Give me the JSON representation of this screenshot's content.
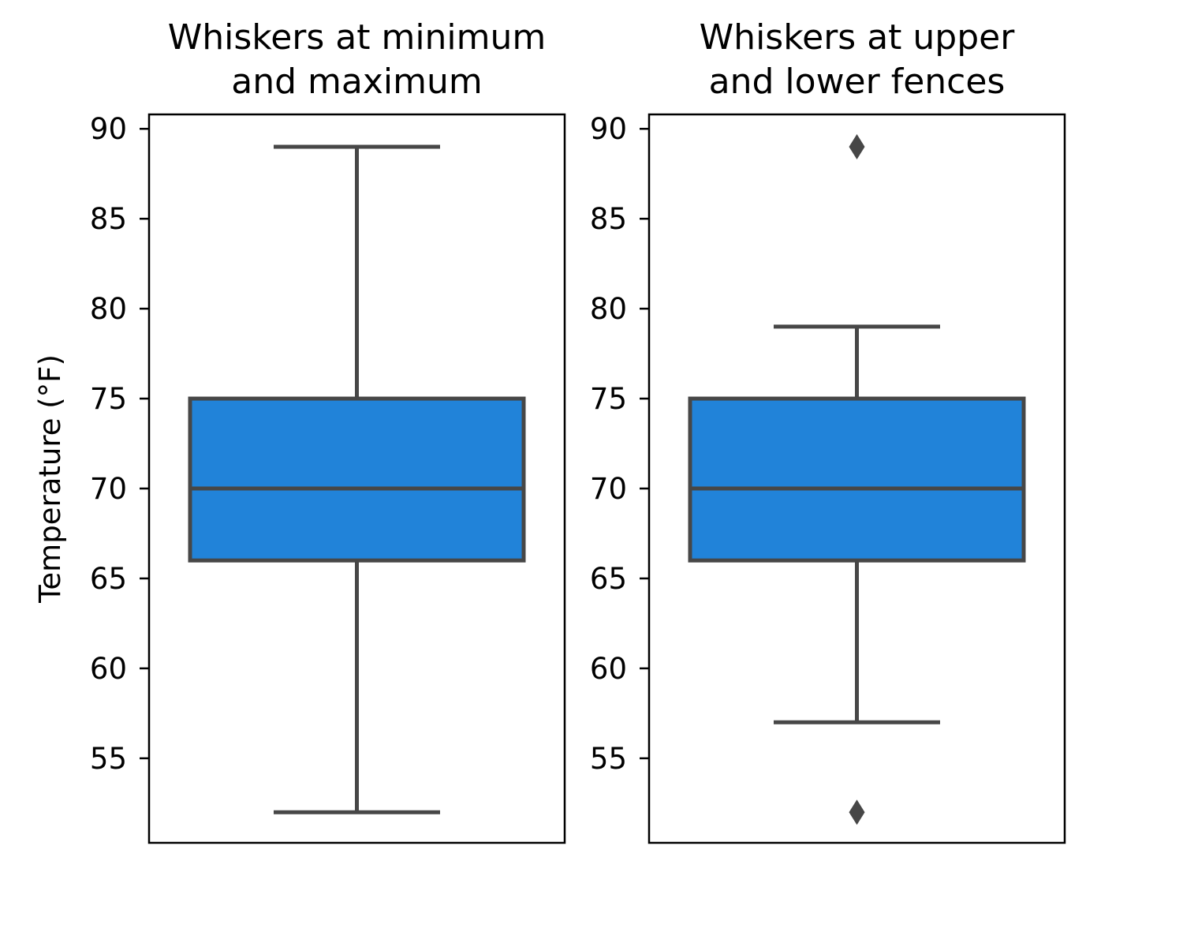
{
  "chart_data": [
    {
      "type": "box",
      "title": "Whiskers at minimum\nand maximum",
      "ylabel": "Temperature (°F)",
      "ylim": [
        50.3,
        90.8
      ],
      "yticks": [
        55,
        60,
        65,
        70,
        75,
        80,
        85,
        90
      ],
      "grid": false,
      "box": {
        "q1": 66,
        "median": 70,
        "q3": 75,
        "whisker_low": 52,
        "whisker_high": 89
      },
      "outliers": []
    },
    {
      "type": "box",
      "title": "Whiskers at upper\nand lower fences",
      "ylabel": "",
      "ylim": [
        50.3,
        90.8
      ],
      "yticks": [
        55,
        60,
        65,
        70,
        75,
        80,
        85,
        90
      ],
      "grid": false,
      "box": {
        "q1": 66,
        "median": 70,
        "q3": 75,
        "whisker_low": 57,
        "whisker_high": 79
      },
      "outliers": [
        52,
        89
      ]
    }
  ],
  "colors": {
    "box_fill": "#2183d9",
    "box_edge": "#474747",
    "axis": "#000000"
  }
}
